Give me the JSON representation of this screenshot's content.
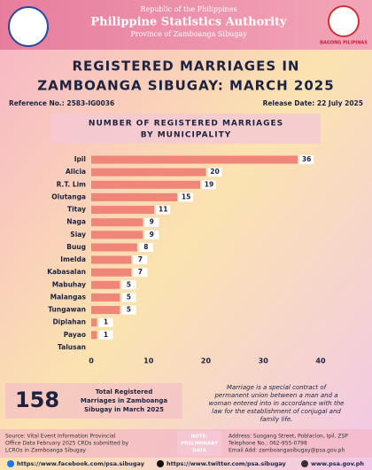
{
  "header": {
    "republic": "Republic of the Philippines",
    "agency": "Philippine Statistics Authority",
    "province": "Province of Zamboanga Sibugay",
    "badge": "BAGONG PILIPINAS"
  },
  "title_lines": [
    "REGISTERED MARRIAGES IN",
    "ZAMBOANGA SIBUGAY: MARCH 2025"
  ],
  "reference": "Reference No.: 2583-IG0036",
  "release_date": "Release Date: 22 July 2025",
  "chart_data": {
    "type": "bar",
    "orientation": "horizontal",
    "title_lines": [
      "NUMBER OF REGISTERED MARRIAGES",
      "BY MUNICIPALITY"
    ],
    "categories": [
      "Ipil",
      "Alicia",
      "R.T. Lim",
      "Olutanga",
      "Titay",
      "Naga",
      "Siay",
      "Buug",
      "Imelda",
      "Kabasalan",
      "Mabuhay",
      "Malangas",
      "Tungawan",
      "Diplahan",
      "Payao",
      "Talusan"
    ],
    "values": [
      36,
      20,
      19,
      15,
      11,
      9,
      9,
      8,
      7,
      7,
      5,
      5,
      5,
      1,
      1,
      0
    ],
    "color": "#f08579",
    "xlim": [
      0,
      40
    ],
    "xticks": [
      0,
      10,
      20,
      30,
      40
    ],
    "grid": false
  },
  "total": {
    "value": "158",
    "label_lines": [
      "Total Registered",
      "Marriages in Zamboanga",
      "Sibugay in March 2025"
    ]
  },
  "quote_lines": [
    "Marriage is a special contract of",
    "permanent union between a man and a",
    "woman entered into in accordance with the",
    "law for the establishment of conjugal and",
    "family life."
  ],
  "footer": {
    "source_lines": [
      "Source: Vital Event Information Provincial",
      "Office Data February 2025 CRDs submitted by",
      "LCROs in Zamboanga Sibugay"
    ],
    "note_lines": [
      "NOTE:",
      "PRELIMINARY",
      "DATA"
    ],
    "address_lines": [
      "Address: Suogang Street, Poblacion, Ipil, ZSP",
      "Telephone No.: 062-955-0798",
      "Email Add: zamboangasibugay@psa.gov.ph"
    ],
    "links": [
      "https://www.facebook.com/psa.sibugay",
      "https://www.twitter.com/psa.sibugay",
      "www.psa.gov.ph"
    ]
  }
}
